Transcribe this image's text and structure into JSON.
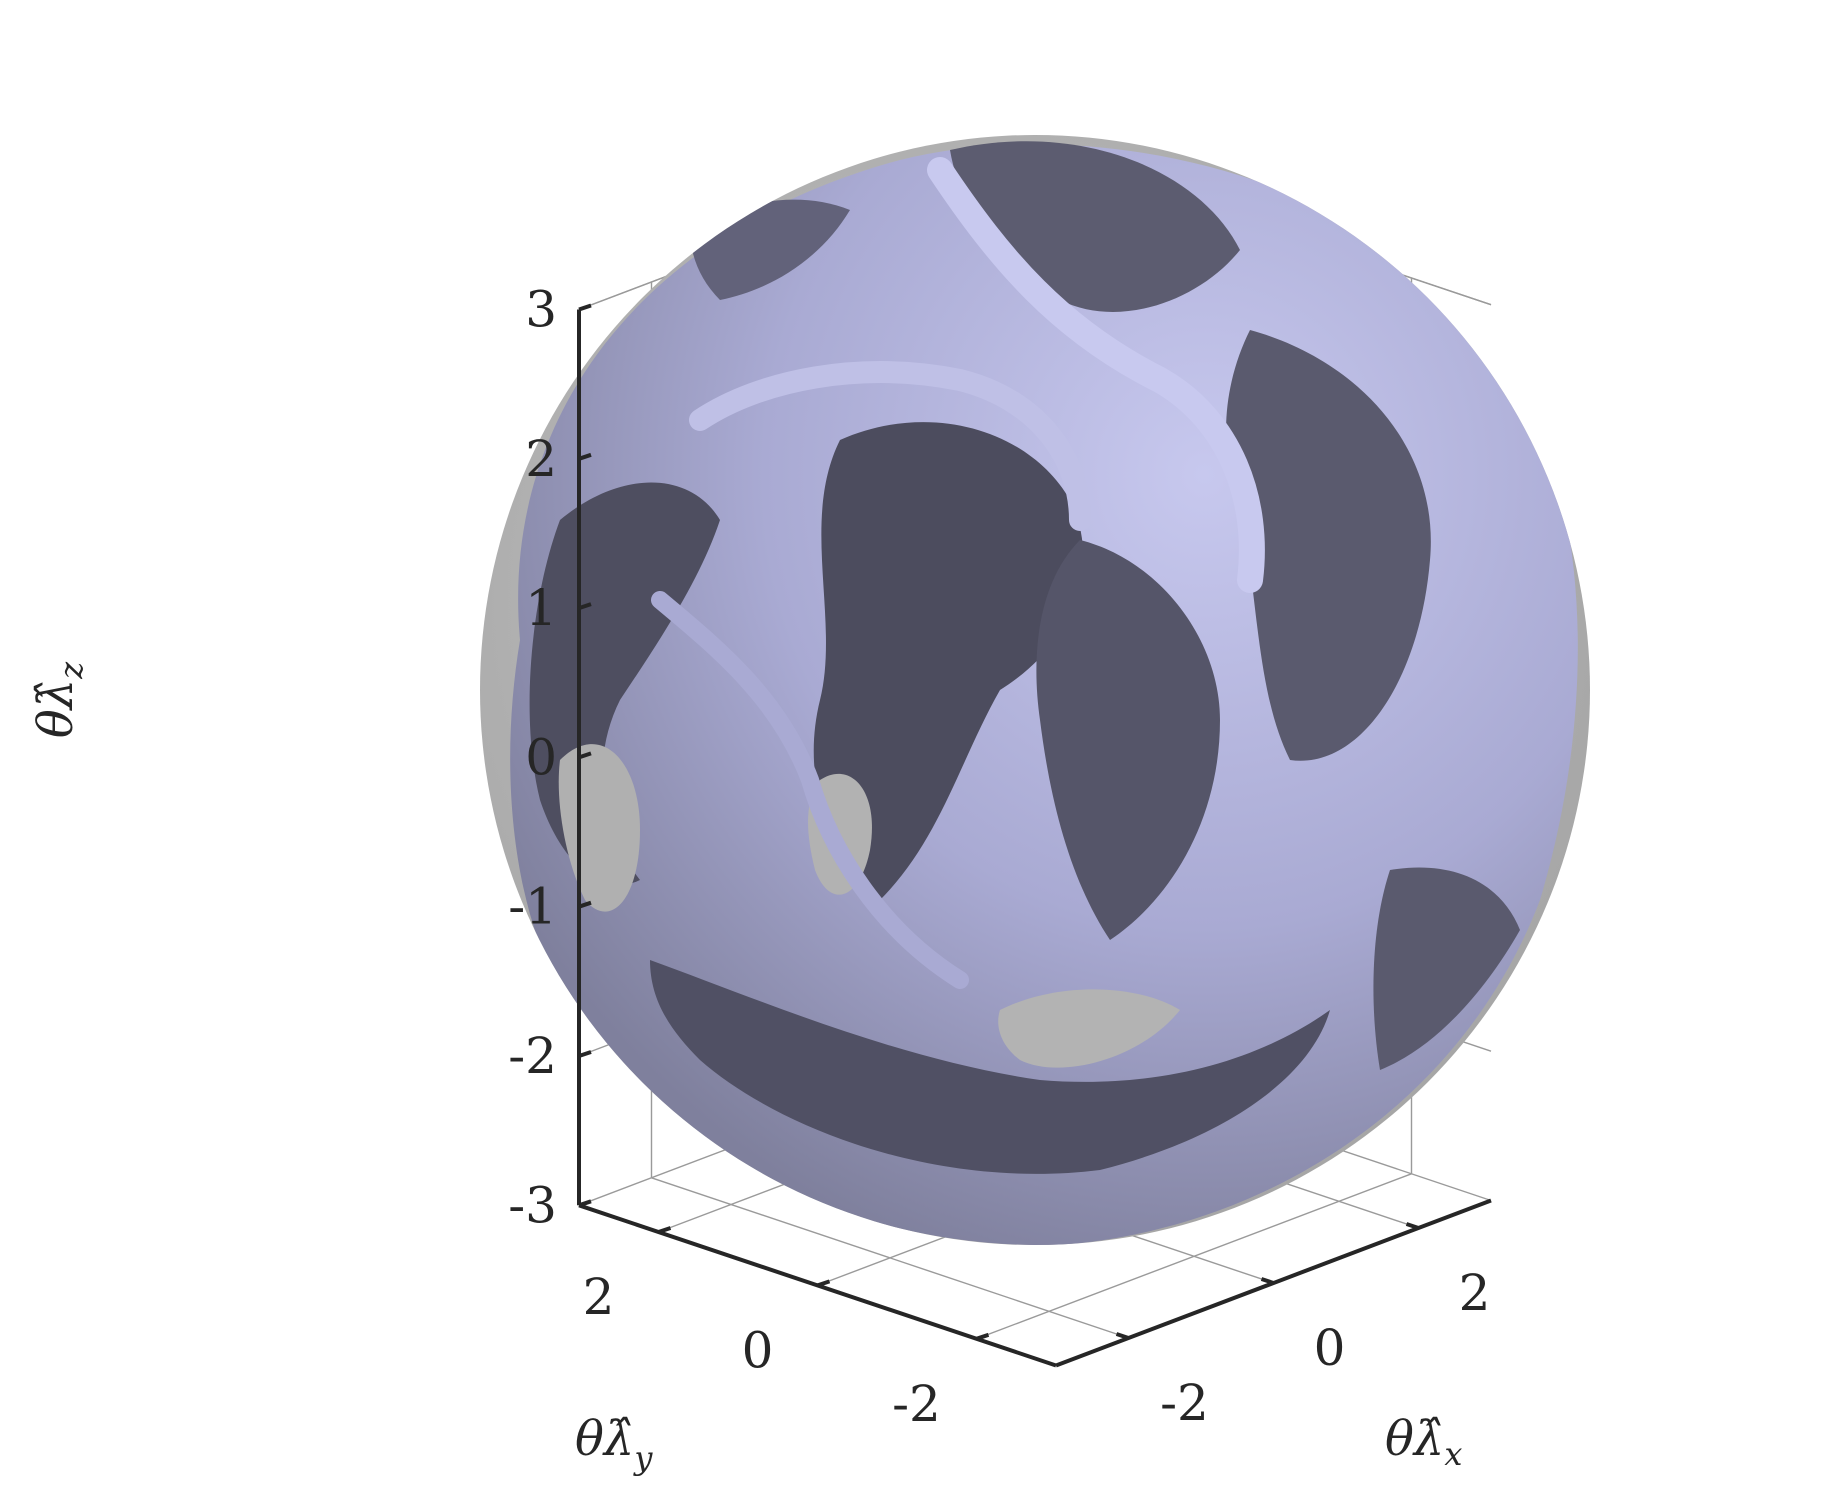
{
  "chart_data": {
    "type": "surface3d",
    "view": "3d-perspective",
    "grid": true,
    "axes": {
      "x": {
        "label_greek": "θ",
        "label_symbol": "λ̂",
        "label_sub": "x",
        "ticks": [
          -2,
          0,
          2
        ],
        "tick_labels": [
          "-2",
          "0",
          "2"
        ],
        "lim": [
          -3,
          3
        ]
      },
      "y": {
        "label_greek": "θ",
        "label_symbol": "λ̂",
        "label_sub": "y",
        "ticks": [
          2,
          0,
          -2
        ],
        "tick_labels": [
          "2",
          "0",
          "-2"
        ],
        "lim": [
          -3,
          3
        ]
      },
      "z": {
        "label_greek": "θ",
        "label_symbol": "λ̂",
        "label_sub": "z",
        "ticks": [
          3,
          2,
          1,
          0,
          -1,
          -2,
          -3
        ],
        "tick_labels": [
          "3",
          "2",
          "1",
          "0",
          "-1",
          "-2",
          "-3"
        ],
        "lim": [
          -3,
          3
        ]
      }
    },
    "objects": [
      {
        "name": "ball",
        "shape": "sphere",
        "center": [
          0,
          0,
          0
        ],
        "radius": 3.14159,
        "color": "#b4b4b4",
        "opacity": 0.85
      },
      {
        "name": "isosurface",
        "shape": "triangulated isosurface inside ball",
        "colors": {
          "light": "#b8b9e0",
          "mid": "#7a7b98",
          "dark": "#4a4a5c"
        }
      }
    ],
    "colors": {
      "grid": "#9a9a9a",
      "axis": "#262626",
      "text": "#262626"
    }
  }
}
